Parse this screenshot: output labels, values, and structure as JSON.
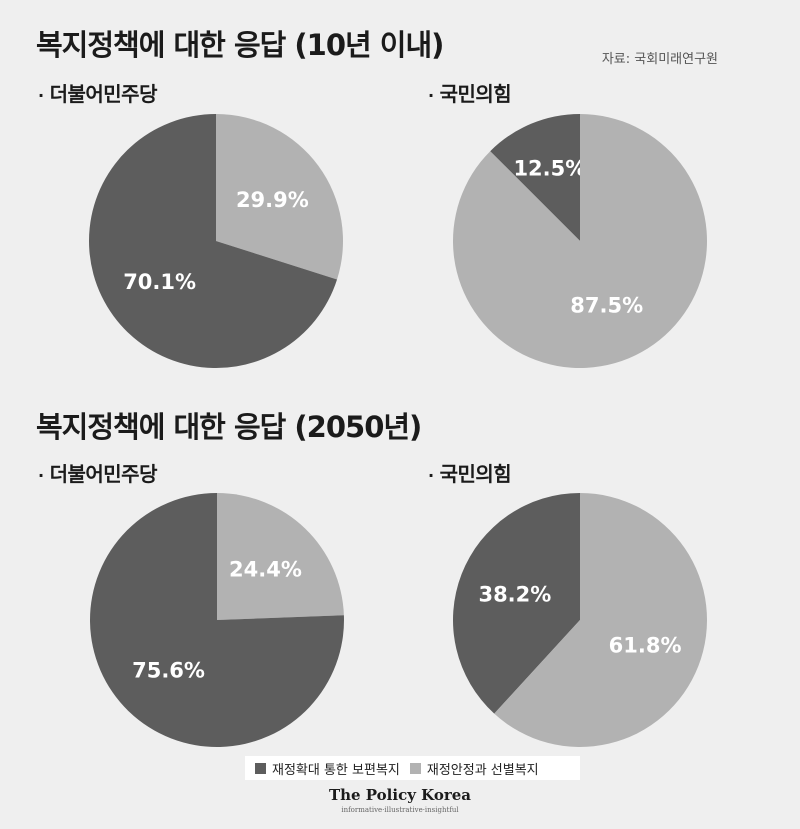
{
  "source": "자료: 국회미래연구원",
  "brand": {
    "name": "The Policy Korea",
    "tagline": "informative·illustrative·insightful"
  },
  "colors": {
    "expansion": "#5d5d5d",
    "stability": "#b2b2b2",
    "label": "#ffffff"
  },
  "legend": [
    {
      "label": "재정확대 통한 보편복지",
      "color": "#5d5d5d"
    },
    {
      "label": "재정안정과 선별복지",
      "color": "#b2b2b2"
    }
  ],
  "sections": [
    {
      "title": "복지정책에 대한 응답 (10년 이내)",
      "parties": [
        {
          "label": "더불어민주당",
          "slices": [
            {
              "name": "재정확대 통한 보편복지",
              "value": 70.1,
              "label": "70.1%"
            },
            {
              "name": "재정안정과 선별복지",
              "value": 29.9,
              "label": "29.9%"
            }
          ]
        },
        {
          "label": "국민의힘",
          "slices": [
            {
              "name": "재정확대 통한 보편복지",
              "value": 12.5,
              "label": "12.5%"
            },
            {
              "name": "재정안정과 선별복지",
              "value": 87.5,
              "label": "87.5%"
            }
          ]
        }
      ]
    },
    {
      "title": "복지정책에 대한 응답 (2050년)",
      "parties": [
        {
          "label": "더불어민주당",
          "slices": [
            {
              "name": "재정확대 통한 보편복지",
              "value": 75.6,
              "label": "75.6%"
            },
            {
              "name": "재정안정과 선별복지",
              "value": 24.4,
              "label": "24.4%"
            }
          ]
        },
        {
          "label": "국민의힘",
          "slices": [
            {
              "name": "재정확대 통한 보편복지",
              "value": 38.2,
              "label": "38.2%"
            },
            {
              "name": "재정안정과 선별복지",
              "value": 61.8,
              "label": "61.8%"
            }
          ]
        }
      ]
    }
  ],
  "chart_data": [
    {
      "type": "pie",
      "title": "복지정책에 대한 응답 (10년 이내)",
      "subtitle": "더불어민주당",
      "categories": [
        "재정확대 통한 보편복지",
        "재정안정과 선별복지"
      ],
      "values": [
        70.1,
        29.9
      ]
    },
    {
      "type": "pie",
      "title": "복지정책에 대한 응답 (10년 이내)",
      "subtitle": "국민의힘",
      "categories": [
        "재정확대 통한 보편복지",
        "재정안정과 선별복지"
      ],
      "values": [
        12.5,
        87.5
      ]
    },
    {
      "type": "pie",
      "title": "복지정책에 대한 응답 (2050년)",
      "subtitle": "더불어민주당",
      "categories": [
        "재정확대 통한 보편복지",
        "재정안정과 선별복지"
      ],
      "values": [
        75.6,
        24.4
      ]
    },
    {
      "type": "pie",
      "title": "복지정책에 대한 응답 (2050년)",
      "subtitle": "국민의힘",
      "categories": [
        "재정확대 통한 보편복지",
        "재정안정과 선별복지"
      ],
      "values": [
        38.2,
        61.8
      ]
    }
  ]
}
